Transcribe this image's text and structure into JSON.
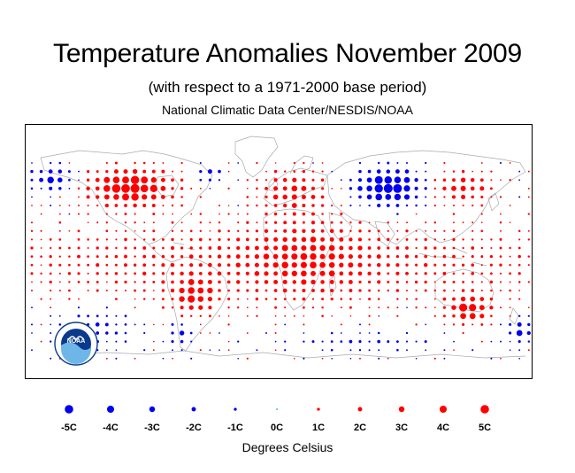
{
  "header": {
    "title": "Temperature Anomalies November 2009",
    "subtitle": "(with respect to a 1971-2000 base period)",
    "source": "National Climatic Data Center/NESDIS/NOAA"
  },
  "legend": {
    "items": [
      {
        "label": "-5C",
        "value": -5
      },
      {
        "label": "-4C",
        "value": -4
      },
      {
        "label": "-3C",
        "value": -3
      },
      {
        "label": "-2C",
        "value": -2
      },
      {
        "label": "-1C",
        "value": -1
      },
      {
        "label": "0C",
        "value": 0
      },
      {
        "label": "1C",
        "value": 1
      },
      {
        "label": "2C",
        "value": 2
      },
      {
        "label": "3C",
        "value": 3
      },
      {
        "label": "4C",
        "value": 4
      },
      {
        "label": "5C",
        "value": 5
      }
    ],
    "units": "Degrees Celsius"
  },
  "colors": {
    "warm": "#ff0000",
    "cold": "#0000ee",
    "neutral": "#22aaaa",
    "coast": "#aaaaaa",
    "frame": "#000000",
    "logo_blue": "#0a3a8c",
    "logo_light": "#6fb6e8"
  },
  "logo": {
    "text": "NOAA",
    "name": "noaa-logo"
  },
  "anomaly_field": {
    "lat_range": [
      -60,
      75
    ],
    "lon_range": [
      -180,
      180
    ],
    "regions": [
      {
        "name": "northern-north-america-warm",
        "lon": -105,
        "lat": 58,
        "sx": 28,
        "sy": 12,
        "amp": 5.5
      },
      {
        "name": "alaska-cold",
        "lon": -160,
        "lat": 64,
        "sx": 14,
        "sy": 8,
        "amp": -3.5
      },
      {
        "name": "west-greenland-cold",
        "lon": -50,
        "lat": 67,
        "sx": 8,
        "sy": 5,
        "amp": -3
      },
      {
        "name": "western-europe-warm",
        "lon": 10,
        "lat": 55,
        "sx": 22,
        "sy": 14,
        "amp": 3
      },
      {
        "name": "siberia-cold",
        "lon": 78,
        "lat": 58,
        "sx": 22,
        "sy": 12,
        "amp": -5.5
      },
      {
        "name": "east-asia-warm",
        "lon": 130,
        "lat": 58,
        "sx": 20,
        "sy": 10,
        "amp": 3
      },
      {
        "name": "africa-warm",
        "lon": 20,
        "lat": 10,
        "sx": 35,
        "sy": 25,
        "amp": 2
      },
      {
        "name": "tropics-warm",
        "lon": 0,
        "lat": 5,
        "sx": 200,
        "sy": 25,
        "amp": 1.8
      },
      {
        "name": "south-america-warm",
        "lon": -60,
        "lat": -18,
        "sx": 14,
        "sy": 12,
        "amp": 3.5
      },
      {
        "name": "patagonia-cold",
        "lon": -70,
        "lat": -45,
        "sx": 6,
        "sy": 8,
        "amp": -3
      },
      {
        "name": "australia-warm",
        "lon": 135,
        "lat": -27,
        "sx": 14,
        "sy": 9,
        "amp": 4.5
      },
      {
        "name": "south-pacific-cold",
        "lon": -130,
        "lat": -40,
        "sx": 25,
        "sy": 12,
        "amp": -1.8
      },
      {
        "name": "new-zealand-cold",
        "lon": 172,
        "lat": -42,
        "sx": 10,
        "sy": 8,
        "amp": -3
      },
      {
        "name": "southern-ocean-cold",
        "lon": 60,
        "lat": -50,
        "sx": 50,
        "sy": 6,
        "amp": -1.2
      }
    ]
  }
}
